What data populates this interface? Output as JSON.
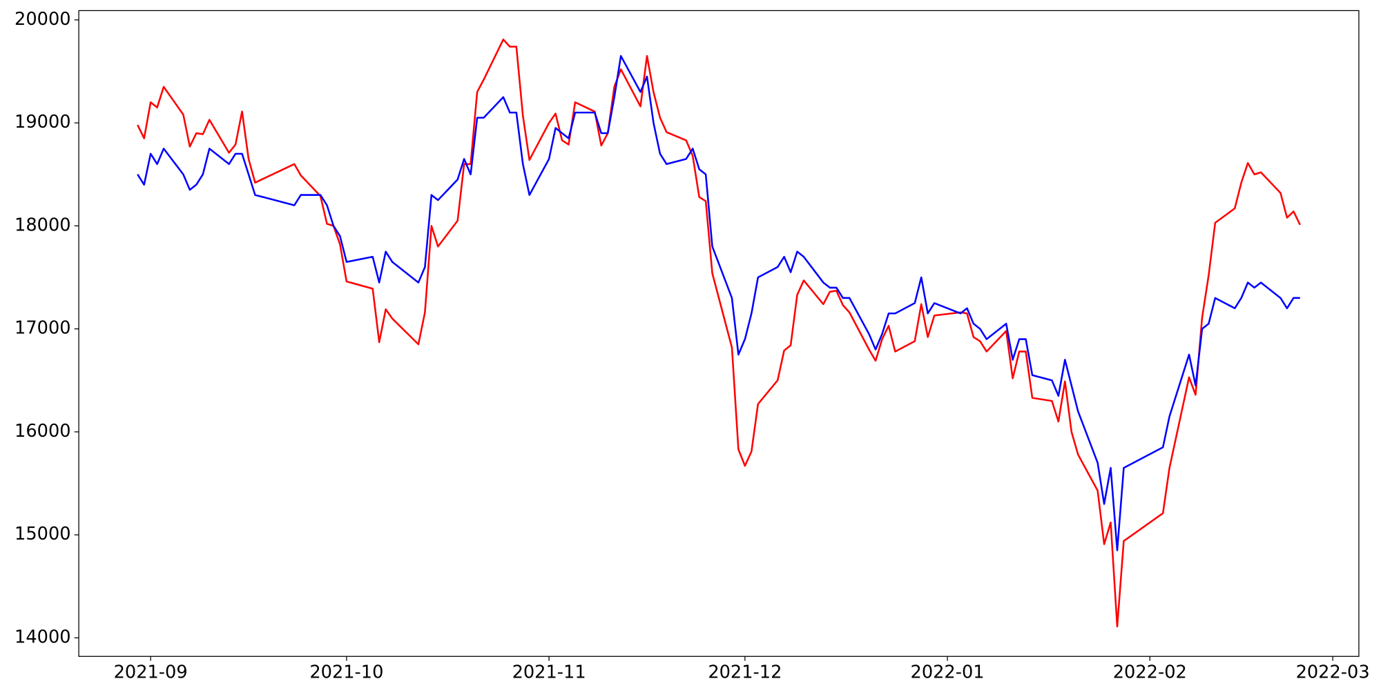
{
  "chart_data": {
    "type": "line",
    "x": [
      "2021-08-30",
      "2021-08-31",
      "2021-09-01",
      "2021-09-02",
      "2021-09-03",
      "2021-09-06",
      "2021-09-07",
      "2021-09-08",
      "2021-09-09",
      "2021-09-10",
      "2021-09-13",
      "2021-09-14",
      "2021-09-15",
      "2021-09-16",
      "2021-09-17",
      "2021-09-23",
      "2021-09-24",
      "2021-09-27",
      "2021-09-28",
      "2021-09-29",
      "2021-09-30",
      "2021-10-01",
      "2021-10-05",
      "2021-10-06",
      "2021-10-07",
      "2021-10-08",
      "2021-10-12",
      "2021-10-13",
      "2021-10-14",
      "2021-10-15",
      "2021-10-18",
      "2021-10-19",
      "2021-10-20",
      "2021-10-21",
      "2021-10-22",
      "2021-10-25",
      "2021-10-26",
      "2021-10-27",
      "2021-10-28",
      "2021-10-29",
      "2021-11-01",
      "2021-11-02",
      "2021-11-03",
      "2021-11-04",
      "2021-11-05",
      "2021-11-08",
      "2021-11-09",
      "2021-11-10",
      "2021-11-11",
      "2021-11-12",
      "2021-11-15",
      "2021-11-16",
      "2021-11-17",
      "2021-11-18",
      "2021-11-19",
      "2021-11-22",
      "2021-11-23",
      "2021-11-24",
      "2021-11-25",
      "2021-11-26",
      "2021-11-29",
      "2021-11-30",
      "2021-12-01",
      "2021-12-02",
      "2021-12-03",
      "2021-12-06",
      "2021-12-07",
      "2021-12-08",
      "2021-12-09",
      "2021-12-10",
      "2021-12-13",
      "2021-12-14",
      "2021-12-15",
      "2021-12-16",
      "2021-12-17",
      "2021-12-20",
      "2021-12-21",
      "2021-12-22",
      "2021-12-23",
      "2021-12-24",
      "2021-12-27",
      "2021-12-28",
      "2021-12-29",
      "2021-12-30",
      "2022-01-03",
      "2022-01-04",
      "2022-01-05",
      "2022-01-06",
      "2022-01-07",
      "2022-01-10",
      "2022-01-11",
      "2022-01-12",
      "2022-01-13",
      "2022-01-14",
      "2022-01-17",
      "2022-01-18",
      "2022-01-19",
      "2022-01-20",
      "2022-01-21",
      "2022-01-24",
      "2022-01-25",
      "2022-01-26",
      "2022-01-27",
      "2022-01-28",
      "2022-02-03",
      "2022-02-04",
      "2022-02-07",
      "2022-02-08",
      "2022-02-09",
      "2022-02-10",
      "2022-02-11",
      "2022-02-14",
      "2022-02-15",
      "2022-02-16",
      "2022-02-17",
      "2022-02-18",
      "2022-02-21",
      "2022-02-22",
      "2022-02-23",
      "2022-02-24"
    ],
    "series": [
      {
        "color": "#ff0000",
        "values": [
          18980,
          18850,
          19200,
          19150,
          19350,
          19080,
          18770,
          18900,
          18890,
          19030,
          18710,
          18790,
          19110,
          18650,
          18420,
          18600,
          18490,
          18290,
          18020,
          18000,
          17820,
          17460,
          17390,
          16870,
          17190,
          17100,
          16850,
          17160,
          18000,
          17800,
          18050,
          18600,
          18600,
          19300,
          19420,
          19810,
          19740,
          19740,
          19070,
          18640,
          19000,
          19090,
          18830,
          18790,
          19200,
          19110,
          18780,
          18900,
          19350,
          19520,
          19160,
          19650,
          19300,
          19050,
          18910,
          18830,
          18680,
          18280,
          18240,
          17540,
          16820,
          15830,
          15670,
          15810,
          16270,
          16500,
          16790,
          16840,
          17330,
          17470,
          17240,
          17360,
          17370,
          17230,
          17160,
          16800,
          16690,
          16900,
          17030,
          16780,
          16880,
          17240,
          16920,
          17130,
          17160,
          17150,
          16920,
          16880,
          16780,
          16980,
          16520,
          16780,
          16780,
          16330,
          16300,
          16100,
          16490,
          16000,
          15780,
          15430,
          14910,
          15120,
          14110,
          14940,
          15210,
          15650,
          16530,
          16360,
          17110,
          17520,
          18030,
          18170,
          18420,
          18610,
          18500,
          18520,
          18320,
          18080,
          18140,
          18010
        ]
      },
      {
        "color": "#0000ff",
        "values": [
          18500,
          18400,
          18700,
          18600,
          18750,
          18500,
          18350,
          18400,
          18500,
          18750,
          18600,
          18700,
          18700,
          18500,
          18300,
          18200,
          18300,
          18300,
          18200,
          18000,
          17900,
          17650,
          17700,
          17450,
          17750,
          17650,
          17450,
          17600,
          18300,
          18250,
          18450,
          18650,
          18500,
          19050,
          19050,
          19250,
          19100,
          19100,
          18600,
          18300,
          18650,
          18950,
          18900,
          18850,
          19100,
          19100,
          18900,
          18900,
          19250,
          19650,
          19300,
          19450,
          19000,
          18700,
          18600,
          18650,
          18750,
          18550,
          18500,
          17800,
          17300,
          16750,
          16900,
          17150,
          17500,
          17600,
          17700,
          17550,
          17750,
          17700,
          17450,
          17400,
          17400,
          17300,
          17300,
          16950,
          16800,
          16950,
          17150,
          17150,
          17250,
          17500,
          17150,
          17250,
          17150,
          17200,
          17050,
          17000,
          16900,
          17050,
          16700,
          16900,
          16900,
          16550,
          16500,
          16350,
          16700,
          16450,
          16200,
          15700,
          15300,
          15650,
          14850,
          15650,
          15850,
          16150,
          16750,
          16450,
          17000,
          17050,
          17300,
          17200,
          17300,
          17450,
          17400,
          17450,
          17300,
          17200,
          17300,
          17300
        ]
      }
    ],
    "xlim": [
      "2021-08-21",
      "2022-03-05"
    ],
    "xticks": [
      {
        "value": "2021-09-01",
        "label": "2021-09"
      },
      {
        "value": "2021-10-01",
        "label": "2021-10"
      },
      {
        "value": "2021-11-01",
        "label": "2021-11"
      },
      {
        "value": "2021-12-01",
        "label": "2021-12"
      },
      {
        "value": "2022-01-01",
        "label": "2022-01"
      },
      {
        "value": "2022-02-01",
        "label": "2022-02"
      },
      {
        "value": "2022-03-01",
        "label": "2022-03"
      }
    ],
    "ylim": [
      13820,
      20090
    ],
    "yticks": [
      14000,
      15000,
      16000,
      17000,
      18000,
      19000,
      20000
    ],
    "grid": false
  }
}
